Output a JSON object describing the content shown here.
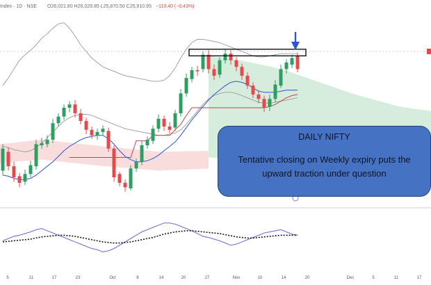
{
  "header": {
    "symbol_text": "Index · 1D · NSE",
    "ohlc_text": "O26,021.80 H26,029.85 L25,870.50 C25,910.95",
    "change_text": "−110.40 (−0.43%)"
  },
  "annotation": {
    "title": "DAILY NIFTY",
    "text": "Tentative closing on Weekly expiry puts the upward traction under question"
  },
  "chart_data": {
    "type": "candlestick",
    "title": "",
    "xlabel": "",
    "ylabel": "",
    "x_ticks": [
      "5",
      "11",
      "17",
      "23",
      "Oct",
      "8",
      "14",
      "20",
      "27",
      "Nov",
      "10",
      "14",
      "20",
      "Dec",
      "5",
      "11",
      "17"
    ],
    "colors": {
      "up": "#2e9e62",
      "down": "#e34b4b",
      "basis": "#2f55d4",
      "support": "#c94040",
      "channel": "#9a9a9a",
      "cloud": "#cfe9d6",
      "cloud_red": "#f8d3d3",
      "oscillator": "#8179d8",
      "signal": "#111111"
    },
    "candles": [
      {
        "o": 128,
        "c": 148,
        "h": 152,
        "l": 124
      },
      {
        "o": 145,
        "c": 132,
        "h": 149,
        "l": 128
      },
      {
        "o": 132,
        "c": 122,
        "h": 136,
        "l": 118
      },
      {
        "o": 123,
        "c": 117,
        "h": 126,
        "l": 113
      },
      {
        "o": 118,
        "c": 125,
        "h": 129,
        "l": 115
      },
      {
        "o": 125,
        "c": 133,
        "h": 137,
        "l": 122
      },
      {
        "o": 132,
        "c": 152,
        "h": 156,
        "l": 129
      },
      {
        "o": 151,
        "c": 153,
        "h": 158,
        "l": 148
      },
      {
        "o": 152,
        "c": 156,
        "h": 160,
        "l": 149
      },
      {
        "o": 156,
        "c": 171,
        "h": 175,
        "l": 153
      },
      {
        "o": 171,
        "c": 177,
        "h": 180,
        "l": 168
      },
      {
        "o": 177,
        "c": 185,
        "h": 188,
        "l": 174
      },
      {
        "o": 185,
        "c": 188,
        "h": 191,
        "l": 181
      },
      {
        "o": 188,
        "c": 180,
        "h": 192,
        "l": 176
      },
      {
        "o": 180,
        "c": 173,
        "h": 184,
        "l": 170
      },
      {
        "o": 173,
        "c": 165,
        "h": 176,
        "l": 161
      },
      {
        "o": 165,
        "c": 160,
        "h": 168,
        "l": 157
      },
      {
        "o": 160,
        "c": 163,
        "h": 166,
        "l": 156
      },
      {
        "o": 163,
        "c": 166,
        "h": 169,
        "l": 160
      },
      {
        "o": 164,
        "c": 148,
        "h": 167,
        "l": 145
      },
      {
        "o": 148,
        "c": 122,
        "h": 151,
        "l": 118
      },
      {
        "o": 125,
        "c": 117,
        "h": 127,
        "l": 114
      },
      {
        "o": 117,
        "c": 113,
        "h": 120,
        "l": 109
      },
      {
        "o": 112,
        "c": 130,
        "h": 133,
        "l": 110
      },
      {
        "o": 130,
        "c": 136,
        "h": 139,
        "l": 127
      },
      {
        "o": 136,
        "c": 151,
        "h": 155,
        "l": 133
      },
      {
        "o": 151,
        "c": 156,
        "h": 159,
        "l": 148
      },
      {
        "o": 155,
        "c": 166,
        "h": 169,
        "l": 152
      },
      {
        "o": 166,
        "c": 175,
        "h": 179,
        "l": 163
      },
      {
        "o": 175,
        "c": 168,
        "h": 178,
        "l": 164
      },
      {
        "o": 168,
        "c": 165,
        "h": 172,
        "l": 162
      },
      {
        "o": 167,
        "c": 180,
        "h": 183,
        "l": 164
      },
      {
        "o": 180,
        "c": 198,
        "h": 202,
        "l": 177
      },
      {
        "o": 198,
        "c": 212,
        "h": 216,
        "l": 195
      },
      {
        "o": 211,
        "c": 219,
        "h": 222,
        "l": 208
      },
      {
        "o": 219,
        "c": 218,
        "h": 223,
        "l": 214
      },
      {
        "o": 220,
        "c": 233,
        "h": 236,
        "l": 217
      },
      {
        "o": 233,
        "c": 220,
        "h": 237,
        "l": 216
      },
      {
        "o": 220,
        "c": 214,
        "h": 224,
        "l": 210
      },
      {
        "o": 215,
        "c": 228,
        "h": 231,
        "l": 212
      },
      {
        "o": 228,
        "c": 234,
        "h": 238,
        "l": 225
      },
      {
        "o": 234,
        "c": 228,
        "h": 237,
        "l": 224
      },
      {
        "o": 228,
        "c": 222,
        "h": 231,
        "l": 218
      },
      {
        "o": 222,
        "c": 214,
        "h": 225,
        "l": 210
      },
      {
        "o": 214,
        "c": 205,
        "h": 217,
        "l": 202
      },
      {
        "o": 205,
        "c": 197,
        "h": 208,
        "l": 194
      },
      {
        "o": 197,
        "c": 193,
        "h": 201,
        "l": 189
      },
      {
        "o": 193,
        "c": 185,
        "h": 196,
        "l": 181
      },
      {
        "o": 186,
        "c": 193,
        "h": 197,
        "l": 182
      },
      {
        "o": 193,
        "c": 206,
        "h": 210,
        "l": 190
      },
      {
        "o": 205,
        "c": 220,
        "h": 224,
        "l": 203
      },
      {
        "o": 220,
        "c": 226,
        "h": 229,
        "l": 216
      },
      {
        "o": 224,
        "c": 230,
        "h": 233,
        "l": 221
      },
      {
        "o": 232,
        "c": 220,
        "h": 235,
        "l": 217
      }
    ],
    "basis": [
      124,
      123,
      121,
      120,
      120,
      121,
      124,
      128,
      132,
      136,
      141,
      146,
      150,
      153,
      156,
      158,
      159,
      160,
      160,
      157,
      152,
      146,
      141,
      138,
      136,
      136,
      137,
      139,
      142,
      146,
      150,
      154,
      160,
      167,
      174,
      180,
      186,
      192,
      197,
      201,
      205,
      208,
      209,
      208,
      206,
      203,
      200,
      199,
      199,
      199,
      200,
      201,
      201,
      201
    ],
    "support": [
      null,
      null,
      null,
      null,
      null,
      null,
      null,
      null,
      null,
      null,
      null,
      null,
      140,
      140,
      140,
      140,
      140,
      140,
      140,
      140,
      140,
      140,
      140,
      140,
      155,
      155,
      155,
      160,
      160,
      160,
      160,
      165,
      170,
      178,
      185,
      185,
      185,
      185,
      185,
      185,
      185,
      185,
      185,
      185,
      185,
      185,
      185,
      185,
      186,
      188,
      191,
      194,
      196,
      197
    ],
    "channel_upper": [
      205,
      212,
      220,
      228,
      233,
      237,
      242,
      248,
      252,
      257,
      261,
      262,
      257,
      250,
      242,
      236,
      230,
      226,
      222,
      220,
      218,
      216,
      214,
      213,
      212,
      211,
      210,
      209,
      209,
      210,
      214,
      221,
      230,
      238,
      244,
      247,
      247,
      246,
      245,
      244,
      242,
      240,
      238,
      236,
      234,
      232,
      231,
      231,
      232,
      233,
      234,
      234,
      234,
      234
    ],
    "channel_lower": [
      150,
      149,
      147,
      146,
      145,
      146,
      149,
      153,
      158,
      163,
      168,
      173,
      176,
      178,
      179,
      179,
      178,
      176,
      174,
      172,
      170,
      168,
      166,
      165,
      164,
      163,
      162,
      161,
      160,
      160,
      161,
      162,
      165,
      170,
      176,
      182,
      188,
      193,
      196,
      198,
      199,
      199,
      198,
      196,
      194,
      192,
      190,
      189,
      189,
      190,
      191,
      192,
      193,
      194
    ],
    "resistance_zone": [
      232,
      238
    ],
    "oscillator": [
      42,
      46,
      50,
      52,
      55,
      58,
      62,
      64,
      60,
      56,
      52,
      48,
      44,
      40,
      36,
      32,
      28,
      26,
      22,
      24,
      28,
      34,
      40,
      46,
      52,
      58,
      62,
      66,
      70,
      74,
      74,
      72,
      68,
      64,
      60,
      55,
      50,
      48,
      45,
      42,
      38,
      34,
      36,
      40,
      44,
      48,
      52,
      56,
      58,
      60,
      62,
      58,
      54,
      52
    ],
    "signal": [
      40,
      41,
      42,
      43,
      44,
      45,
      47,
      49,
      50,
      51,
      52,
      52,
      51,
      50,
      48,
      46,
      44,
      42,
      40,
      39,
      38,
      38,
      39,
      40,
      42,
      44,
      46,
      48,
      51,
      54,
      56,
      58,
      59,
      60,
      60,
      59,
      58,
      57,
      56,
      55,
      53,
      51,
      49,
      48,
      47,
      47,
      48,
      49,
      50,
      51,
      52,
      52,
      52,
      52
    ],
    "cloud_upper": [
      232,
      230,
      228,
      225,
      222,
      218,
      213,
      208,
      203,
      198,
      194,
      190,
      186,
      184,
      182
    ],
    "cloud_lower": [
      140,
      139,
      139,
      139,
      140,
      141,
      143,
      145,
      147,
      149,
      151,
      153,
      155,
      157,
      158
    ],
    "ylim": [
      100,
      270
    ],
    "osc_ylim": [
      0,
      100
    ]
  }
}
